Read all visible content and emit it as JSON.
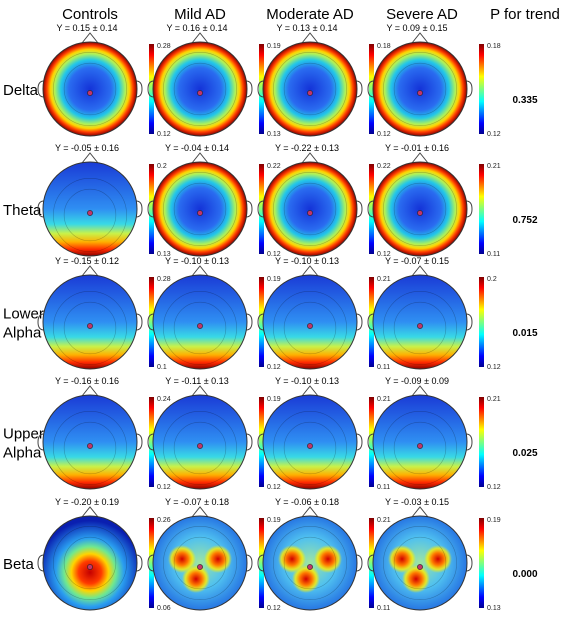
{
  "columns": [
    "Controls",
    "Mild AD",
    "Moderate AD",
    "Severe AD"
  ],
  "trend_header": "P for trend",
  "bands": [
    {
      "label_lines": [
        "Delta"
      ],
      "p": "0.335",
      "cells": [
        {
          "y_label": "Y = 0.15 ± 0.14",
          "cb_max": "0.28",
          "cb_min": "0.12",
          "pattern": "ring"
        },
        {
          "y_label": "Y = 0.16 ± 0.14",
          "cb_max": "0.19",
          "cb_min": "0.13",
          "pattern": "ring"
        },
        {
          "y_label": "Y = 0.13 ± 0.14",
          "cb_max": "0.18",
          "cb_min": "0.12",
          "pattern": "ring"
        },
        {
          "y_label": "Y = 0.09 ± 0.15",
          "cb_max": "0.18",
          "cb_min": "0.12",
          "pattern": "ring"
        }
      ]
    },
    {
      "label_lines": [
        "Theta"
      ],
      "p": "0.752",
      "cells": [
        {
          "y_label": "Y = -0.05 ± 0.16",
          "cb_max": "0.2",
          "cb_min": "0.13",
          "pattern": "bottom"
        },
        {
          "y_label": "Y = -0.04 ± 0.14",
          "cb_max": "0.22",
          "cb_min": "0.12",
          "pattern": "ring"
        },
        {
          "y_label": "Y = -0.22 ± 0.13",
          "cb_max": "0.22",
          "cb_min": "0.12",
          "pattern": "ring"
        },
        {
          "y_label": "Y = -0.01 ± 0.16",
          "cb_max": "0.21",
          "cb_min": "0.11",
          "pattern": "ring"
        }
      ]
    },
    {
      "label_lines": [
        "Lower",
        "Alpha"
      ],
      "p": "0.015",
      "cells": [
        {
          "y_label": "Y = -0.15 ± 0.12",
          "cb_max": "0.28",
          "cb_min": "0.1",
          "pattern": "bottom"
        },
        {
          "y_label": "Y = -0.10 ± 0.13",
          "cb_max": "0.19",
          "cb_min": "0.12",
          "pattern": "bottom"
        },
        {
          "y_label": "Y = -0.10 ± 0.13",
          "cb_max": "0.21",
          "cb_min": "0.11",
          "pattern": "bottom"
        },
        {
          "y_label": "Y = -0.07 ± 0.15",
          "cb_max": "0.2",
          "cb_min": "0.12",
          "pattern": "bottom"
        }
      ]
    },
    {
      "label_lines": [
        "Upper",
        "Alpha"
      ],
      "p": "0.025",
      "cells": [
        {
          "y_label": "Y = -0.16 ± 0.16",
          "cb_max": "0.24",
          "cb_min": "0.12",
          "pattern": "bottom"
        },
        {
          "y_label": "Y = -0.11 ± 0.13",
          "cb_max": "0.19",
          "cb_min": "0.12",
          "pattern": "bottom"
        },
        {
          "y_label": "Y = -0.10 ± 0.13",
          "cb_max": "0.21",
          "cb_min": "0.11",
          "pattern": "bottom"
        },
        {
          "y_label": "Y = -0.09 ± 0.09",
          "cb_max": "0.21",
          "cb_min": "0.12",
          "pattern": "bottom"
        }
      ]
    },
    {
      "label_lines": [
        "Beta"
      ],
      "p": "0.000",
      "cells": [
        {
          "y_label": "Y = -0.20 ± 0.19",
          "cb_max": "0.26",
          "cb_min": "0.06",
          "pattern": "center"
        },
        {
          "y_label": "Y = -0.07 ± 0.18",
          "cb_max": "0.19",
          "cb_min": "0.12",
          "pattern": "spots"
        },
        {
          "y_label": "Y = -0.06 ± 0.18",
          "cb_max": "0.21",
          "cb_min": "0.11",
          "pattern": "spots"
        },
        {
          "y_label": "Y = -0.03 ± 0.15",
          "cb_max": "0.19",
          "cb_min": "0.13",
          "pattern": "spots"
        }
      ]
    }
  ]
}
